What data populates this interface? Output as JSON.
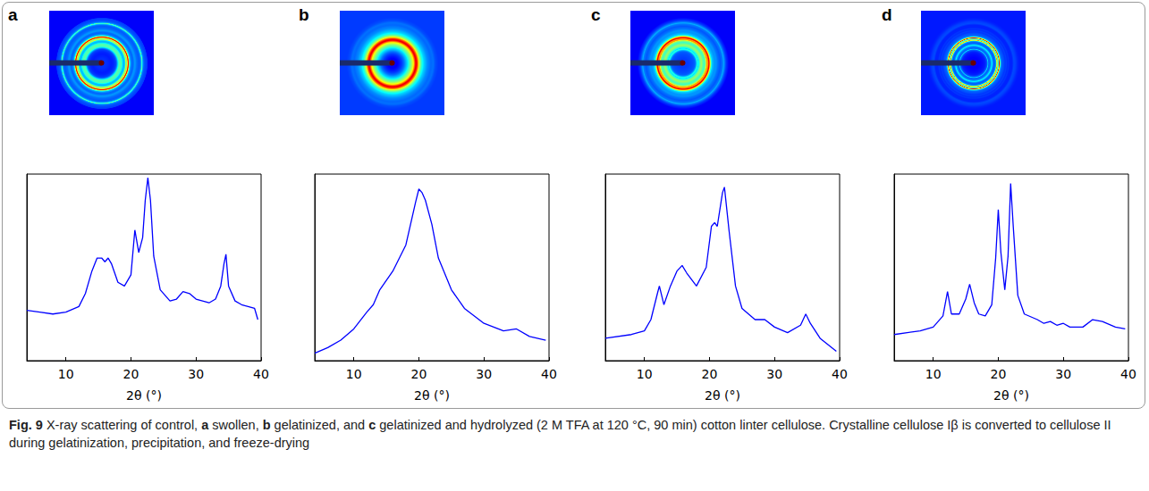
{
  "figure": {
    "caption": [
      {
        "text": "Fig. 9",
        "bold": true
      },
      {
        "text": " X-ray scattering of control, ",
        "bold": false
      },
      {
        "text": "a",
        "bold": true
      },
      {
        "text": " swollen, ",
        "bold": false
      },
      {
        "text": "b",
        "bold": true
      },
      {
        "text": " gelatinized, and ",
        "bold": false
      },
      {
        "text": "c",
        "bold": true
      },
      {
        "text": " gelatinized and hydrolyzed (2 M TFA at 120 °C, 90 min) cotton linter cellulose. Crystalline cellulose Iβ is converted to cellulose II during gelatinization, precipitation, and freeze-drying",
        "bold": false
      }
    ]
  },
  "chart_data": [
    {
      "type": "line",
      "panel_label": "a",
      "xlabel": "2θ (°)",
      "color": "#0000ff",
      "x": [
        4,
        6,
        8,
        10,
        12,
        13,
        14,
        14.8,
        15.5,
        16,
        16.5,
        17,
        18,
        19,
        20,
        20.6,
        21.2,
        21.8,
        22.2,
        22.6,
        23,
        23.5,
        24.5,
        26,
        27,
        28,
        29,
        30,
        31,
        32,
        33,
        33.8,
        34.3,
        34.6,
        35,
        36,
        37,
        38,
        39,
        39.5
      ],
      "values": [
        27,
        26,
        25,
        26,
        29,
        36,
        48,
        55,
        55,
        53,
        55,
        52,
        42,
        40,
        46,
        70,
        58,
        66,
        86,
        98,
        86,
        56,
        38,
        32,
        33,
        37,
        36,
        33,
        32,
        31,
        33,
        40,
        52,
        57,
        40,
        32,
        30,
        29,
        28,
        22
      ],
      "xlim": [
        4,
        40
      ],
      "xticks": [
        10,
        20,
        30,
        40
      ],
      "ylim": [
        0,
        100
      ],
      "tick_labels": "x",
      "grid": false
    },
    {
      "type": "line",
      "panel_label": "b",
      "xlabel": "2θ (°)",
      "color": "#0000ff",
      "x": [
        4,
        6,
        8,
        10,
        12,
        13,
        14,
        16,
        18,
        19.5,
        20,
        20.5,
        21,
        22,
        23,
        25,
        27,
        30,
        33,
        35,
        37,
        39.5
      ],
      "values": [
        4,
        7,
        11,
        17,
        26,
        30,
        38,
        48,
        62,
        85,
        92,
        90,
        86,
        73,
        55,
        38,
        28,
        20,
        16,
        17,
        13,
        11
      ],
      "xlim": [
        4,
        40
      ],
      "xticks": [
        10,
        20,
        30,
        40
      ],
      "ylim": [
        0,
        100
      ],
      "tick_labels": "x",
      "grid": false
    },
    {
      "type": "line",
      "panel_label": "c",
      "xlabel": "2θ (°)",
      "color": "#0000ff",
      "x": [
        4,
        8,
        10,
        11,
        12,
        12.3,
        13,
        14,
        15,
        15.8,
        16.5,
        18,
        19.5,
        20.3,
        20.8,
        21.2,
        22,
        22.3,
        23,
        24,
        25,
        27,
        28.5,
        30,
        32,
        34,
        34.8,
        35.5,
        37,
        39.5
      ],
      "values": [
        12,
        14,
        16,
        22,
        36,
        40,
        30,
        40,
        48,
        51,
        47,
        40,
        50,
        72,
        74,
        72,
        90,
        93,
        70,
        40,
        28,
        22,
        22,
        18,
        15,
        19,
        25,
        20,
        12,
        5
      ],
      "xlim": [
        4,
        40
      ],
      "xticks": [
        10,
        20,
        30,
        40
      ],
      "ylim": [
        0,
        100
      ],
      "tick_labels": "x",
      "grid": false
    },
    {
      "type": "line",
      "panel_label": "d",
      "xlabel": "2θ (°)",
      "color": "#0000ff",
      "x": [
        4,
        8,
        10,
        11.5,
        12.2,
        12.8,
        14,
        15,
        15.6,
        16.3,
        17,
        18,
        19,
        19.6,
        20,
        20.4,
        21,
        21.5,
        21.9,
        22.3,
        23,
        24,
        26,
        27,
        28,
        29,
        30,
        31,
        33,
        34.5,
        36,
        38,
        39.5
      ],
      "values": [
        14,
        16,
        18,
        24,
        37,
        25,
        25,
        33,
        41,
        31,
        25,
        24,
        30,
        55,
        81,
        58,
        38,
        56,
        95,
        72,
        35,
        25,
        22,
        20,
        21,
        19,
        20,
        18,
        18,
        22,
        21,
        18,
        17
      ],
      "xlim": [
        4,
        40
      ],
      "xticks": [
        10,
        20,
        30,
        40
      ],
      "ylim": [
        0,
        100
      ],
      "tick_labels": "x",
      "grid": false
    }
  ]
}
